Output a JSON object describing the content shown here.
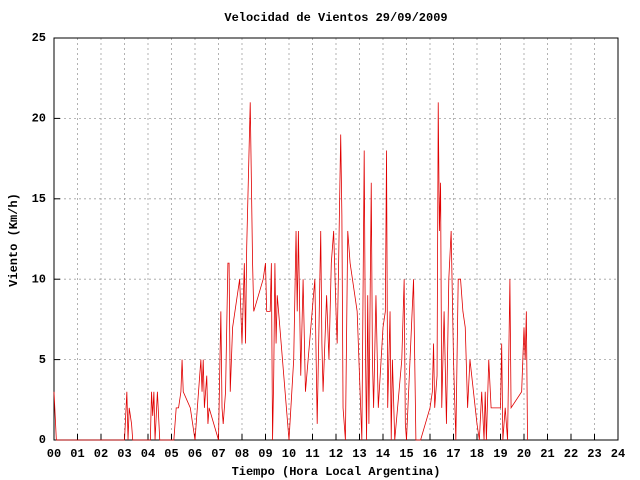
{
  "chart_data": {
    "type": "line",
    "title": "Velocidad de Vientos 29/09/2009",
    "x_label": "Tiempo (Hora Local Argentina)",
    "y_label": "Viento (Km/h)",
    "xlim": [
      0,
      24
    ],
    "ylim": [
      0,
      25
    ],
    "grid": true,
    "xticks": [
      {
        "value": 0,
        "label": "00"
      },
      {
        "value": 1,
        "label": "01"
      },
      {
        "value": 2,
        "label": "02"
      },
      {
        "value": 3,
        "label": "03"
      },
      {
        "value": 4,
        "label": "04"
      },
      {
        "value": 5,
        "label": "05"
      },
      {
        "value": 6,
        "label": "06"
      },
      {
        "value": 7,
        "label": "07"
      },
      {
        "value": 8,
        "label": "08"
      },
      {
        "value": 9,
        "label": "09"
      },
      10,
      11,
      12,
      13,
      14,
      15,
      16,
      17,
      18,
      19,
      20,
      21,
      22,
      23,
      24
    ],
    "yticks": [
      0,
      5,
      10,
      15,
      20,
      25
    ],
    "series": [
      {
        "color": "#e00000",
        "x": [
          0,
          0.05,
          0.1,
          3.0,
          3.1,
          3.15,
          3.2,
          3.3,
          3.35,
          4.1,
          4.15,
          4.2,
          4.25,
          4.3,
          4.4,
          4.45,
          4.5,
          5.1,
          5.2,
          5.3,
          5.4,
          5.45,
          5.5,
          5.8,
          6.0,
          6.1,
          6.2,
          6.25,
          6.3,
          6.35,
          6.4,
          6.5,
          6.55,
          6.6,
          7.0,
          7.1,
          7.15,
          7.2,
          7.3,
          7.4,
          7.45,
          7.5,
          7.6,
          7.8,
          7.9,
          8.0,
          8.1,
          8.15,
          8.2,
          8.3,
          8.35,
          8.4,
          8.45,
          8.5,
          8.9,
          9.0,
          9.05,
          9.2,
          9.25,
          9.3,
          9.35,
          9.4,
          9.45,
          9.5,
          10.0,
          10.2,
          10.3,
          10.35,
          10.4,
          10.5,
          10.6,
          10.7,
          11.1,
          11.2,
          11.3,
          11.35,
          11.4,
          11.45,
          11.6,
          11.7,
          11.8,
          11.9,
          12.0,
          12.05,
          12.1,
          12.2,
          12.25,
          12.3,
          12.4,
          12.5,
          12.6,
          12.9,
          13.1,
          13.2,
          13.25,
          13.3,
          13.35,
          13.4,
          13.5,
          13.55,
          13.6,
          13.7,
          13.8,
          14.0,
          14.1,
          14.15,
          14.2,
          14.3,
          14.35,
          14.4,
          14.5,
          14.8,
          14.9,
          14.95,
          15.0,
          15.3,
          15.4,
          15.6,
          16.0,
          16.1,
          16.15,
          16.2,
          16.3,
          16.35,
          16.4,
          16.45,
          16.5,
          16.6,
          16.7,
          16.8,
          16.9,
          17.0,
          17.1,
          17.2,
          17.3,
          17.4,
          17.5,
          17.6,
          17.7,
          18.0,
          18.1,
          18.2,
          18.3,
          18.35,
          18.4,
          18.5,
          18.6,
          19.0,
          19.05,
          19.1,
          19.2,
          19.3,
          19.4,
          19.45,
          19.9,
          20.0,
          20.05,
          20.1,
          20.15
        ],
        "values": [
          3,
          1.5,
          0,
          0,
          3,
          0,
          2,
          1,
          0,
          0,
          3,
          1.5,
          3,
          0,
          3,
          1.5,
          0,
          0,
          2,
          2,
          3,
          5,
          3,
          2,
          0,
          2,
          4,
          5,
          3,
          5,
          2,
          4,
          1,
          2,
          0,
          8,
          2,
          1,
          3,
          11,
          11,
          3,
          7,
          9,
          10,
          6,
          11,
          6,
          12,
          18,
          21,
          16,
          11,
          8,
          10,
          11,
          8,
          8,
          11,
          0,
          4,
          11,
          6,
          9,
          0,
          5,
          13,
          8,
          13,
          4,
          10,
          3,
          10,
          1,
          9,
          13,
          6,
          3,
          9,
          5,
          11,
          13,
          8,
          6,
          10,
          19,
          14,
          2,
          0,
          13,
          11,
          8,
          0,
          18,
          6,
          0,
          9,
          1,
          16,
          5,
          2,
          9,
          2,
          7,
          8,
          18,
          2,
          8,
          0,
          5,
          0,
          5,
          10,
          1,
          0,
          10,
          0,
          0,
          2,
          3,
          6,
          2,
          4,
          21,
          13,
          16,
          2,
          8,
          1,
          10,
          13,
          5,
          0,
          10,
          10,
          8,
          7,
          2,
          5,
          1,
          0,
          3,
          0,
          3,
          0,
          5,
          2,
          2,
          6,
          0,
          2,
          0,
          10,
          2,
          3,
          7,
          5,
          8,
          0
        ]
      }
    ]
  }
}
